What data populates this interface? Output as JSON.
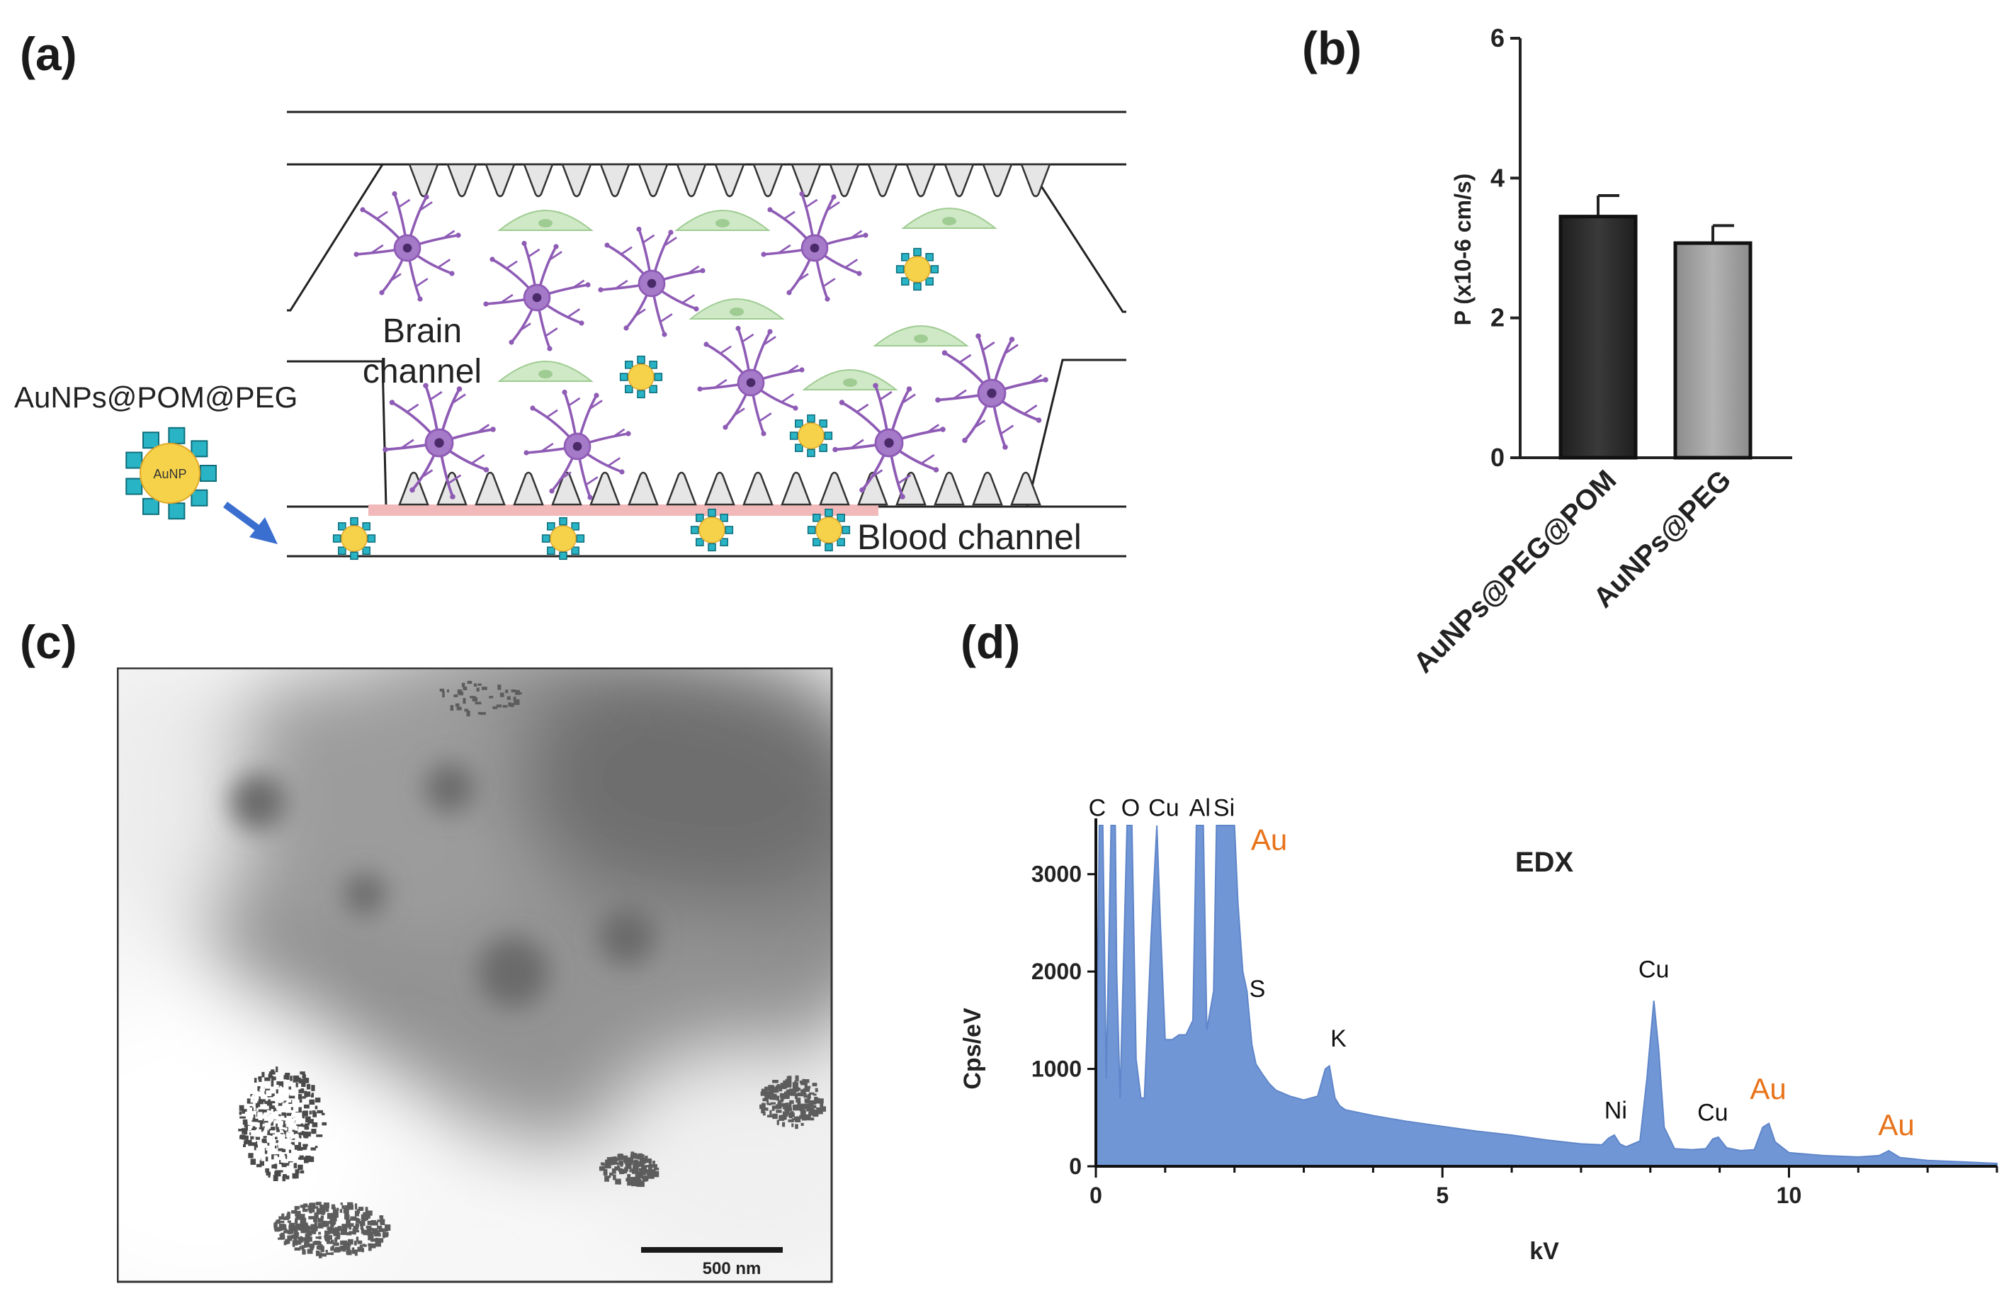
{
  "panels": {
    "a": "(a)",
    "b": "(b)",
    "c": "(c)",
    "d": "(d)"
  },
  "schematic": {
    "nanoparticle_label": "AuNPs@POM@PEG",
    "core_label": "AuNP",
    "brain_channel": [
      "Brain",
      "channel"
    ],
    "blood_channel": "Blood channel"
  },
  "tem": {
    "scale_label": "500 nm"
  },
  "colors": {
    "bar_dark": "#2b2b2b",
    "bar_light": "#9a9a9a",
    "edx_fill": "#7196d6",
    "au_label": "#e8731a",
    "neuron": "#8e5bb5",
    "cell_green": "#cfe8c6",
    "np_core": "#f6d24a",
    "np_shell": "#29b4c6",
    "arrow": "#3b6fcf"
  },
  "chart_data": [
    {
      "type": "bar",
      "categories": [
        "AuNPs@PEG@POM",
        "AuNPs@PEG"
      ],
      "values": [
        3.45,
        3.07
      ],
      "errors": [
        0.3,
        0.25
      ],
      "ylabel": "P (x10-6 cm/s)",
      "ylim": [
        0,
        6
      ],
      "yticks": [
        0,
        2,
        4,
        6
      ]
    },
    {
      "type": "area",
      "title": "EDX",
      "xlabel": "kV",
      "ylabel": "Cps/eV",
      "xlim": [
        0,
        13
      ],
      "ylim": [
        0,
        3500
      ],
      "xticks": [
        0,
        5,
        10
      ],
      "yticks": [
        0,
        1000,
        2000,
        3000
      ],
      "x": [
        0,
        0.05,
        0.1,
        0.15,
        0.22,
        0.28,
        0.3,
        0.35,
        0.45,
        0.52,
        0.58,
        0.65,
        0.7,
        0.8,
        0.88,
        0.93,
        1.0,
        1.1,
        1.2,
        1.3,
        1.4,
        1.45,
        1.49,
        1.55,
        1.6,
        1.7,
        1.74,
        1.8,
        1.9,
        2.0,
        2.05,
        2.12,
        2.18,
        2.25,
        2.31,
        2.4,
        2.5,
        2.6,
        2.8,
        3.0,
        3.2,
        3.31,
        3.37,
        3.45,
        3.52,
        3.6,
        4.0,
        4.5,
        5.0,
        5.5,
        6.0,
        6.5,
        7.0,
        7.3,
        7.4,
        7.48,
        7.56,
        7.65,
        7.85,
        7.95,
        8.05,
        8.12,
        8.2,
        8.35,
        8.6,
        8.8,
        8.9,
        8.98,
        9.1,
        9.3,
        9.5,
        9.62,
        9.71,
        9.8,
        10.0,
        10.5,
        11.0,
        11.3,
        11.44,
        11.6,
        12.0,
        12.5,
        13.0
      ],
      "y": [
        400,
        3500,
        3500,
        900,
        3500,
        3500,
        2000,
        700,
        3500,
        3500,
        1100,
        700,
        700,
        2400,
        3500,
        2500,
        1300,
        1300,
        1350,
        1350,
        1500,
        3500,
        3500,
        3500,
        1400,
        1800,
        3500,
        3500,
        3500,
        3500,
        2700,
        2000,
        1800,
        1250,
        1050,
        950,
        850,
        780,
        720,
        680,
        720,
        1000,
        1030,
        700,
        620,
        580,
        520,
        460,
        410,
        360,
        320,
        270,
        230,
        220,
        290,
        320,
        230,
        200,
        260,
        900,
        1700,
        1200,
        400,
        180,
        170,
        180,
        280,
        300,
        190,
        160,
        170,
        400,
        440,
        250,
        140,
        110,
        95,
        110,
        160,
        90,
        60,
        45,
        30
      ],
      "peak_labels": [
        {
          "text": "C",
          "x": 0.02,
          "y": 3600
        },
        {
          "text": "O",
          "x": 0.5,
          "y": 3600
        },
        {
          "text": "Cu",
          "x": 0.98,
          "y": 3600
        },
        {
          "text": "Al",
          "x": 1.5,
          "y": 3600
        },
        {
          "text": "Si",
          "x": 1.85,
          "y": 3600
        },
        {
          "text": "Au",
          "x": 2.5,
          "y": 3250,
          "highlight": true
        },
        {
          "text": "S",
          "x": 2.33,
          "y": 1740
        },
        {
          "text": "K",
          "x": 3.5,
          "y": 1230
        },
        {
          "text": "Cu",
          "x": 8.05,
          "y": 1940
        },
        {
          "text": "Ni",
          "x": 7.5,
          "y": 490
        },
        {
          "text": "Cu",
          "x": 8.9,
          "y": 470
        },
        {
          "text": "Au",
          "x": 9.7,
          "y": 690,
          "highlight": true
        },
        {
          "text": "Au",
          "x": 11.55,
          "y": 320,
          "highlight": true
        }
      ]
    }
  ]
}
